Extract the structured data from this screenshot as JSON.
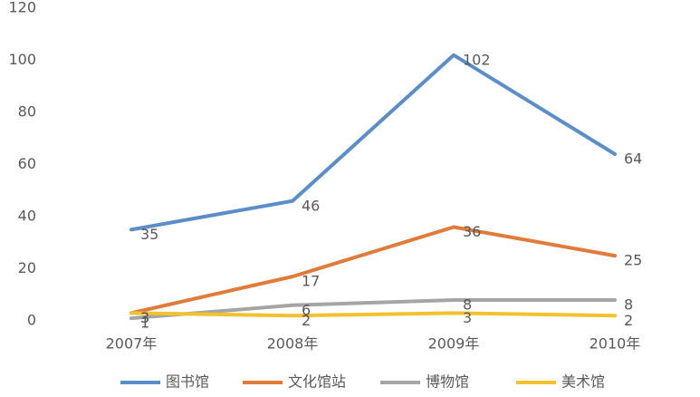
{
  "chart_data": {
    "type": "line",
    "categories": [
      "2007年",
      "2008年",
      "2009年",
      "2010年"
    ],
    "series": [
      {
        "name": "图书馆",
        "color": "#5b8ec9",
        "values": [
          35,
          46,
          102,
          64
        ]
      },
      {
        "name": "文化馆站",
        "color": "#e07b39",
        "values": [
          3,
          17,
          36,
          25
        ]
      },
      {
        "name": "博物馆",
        "color": "#a5a5a5",
        "values": [
          1,
          6,
          8,
          8
        ]
      },
      {
        "name": "美术馆",
        "color": "#f2c12e",
        "values": [
          3,
          2,
          3,
          2
        ]
      }
    ],
    "ylim": [
      0,
      120
    ],
    "yticks": [
      0,
      20,
      40,
      60,
      80,
      100,
      120
    ],
    "grid": false,
    "legend": "bottom"
  }
}
